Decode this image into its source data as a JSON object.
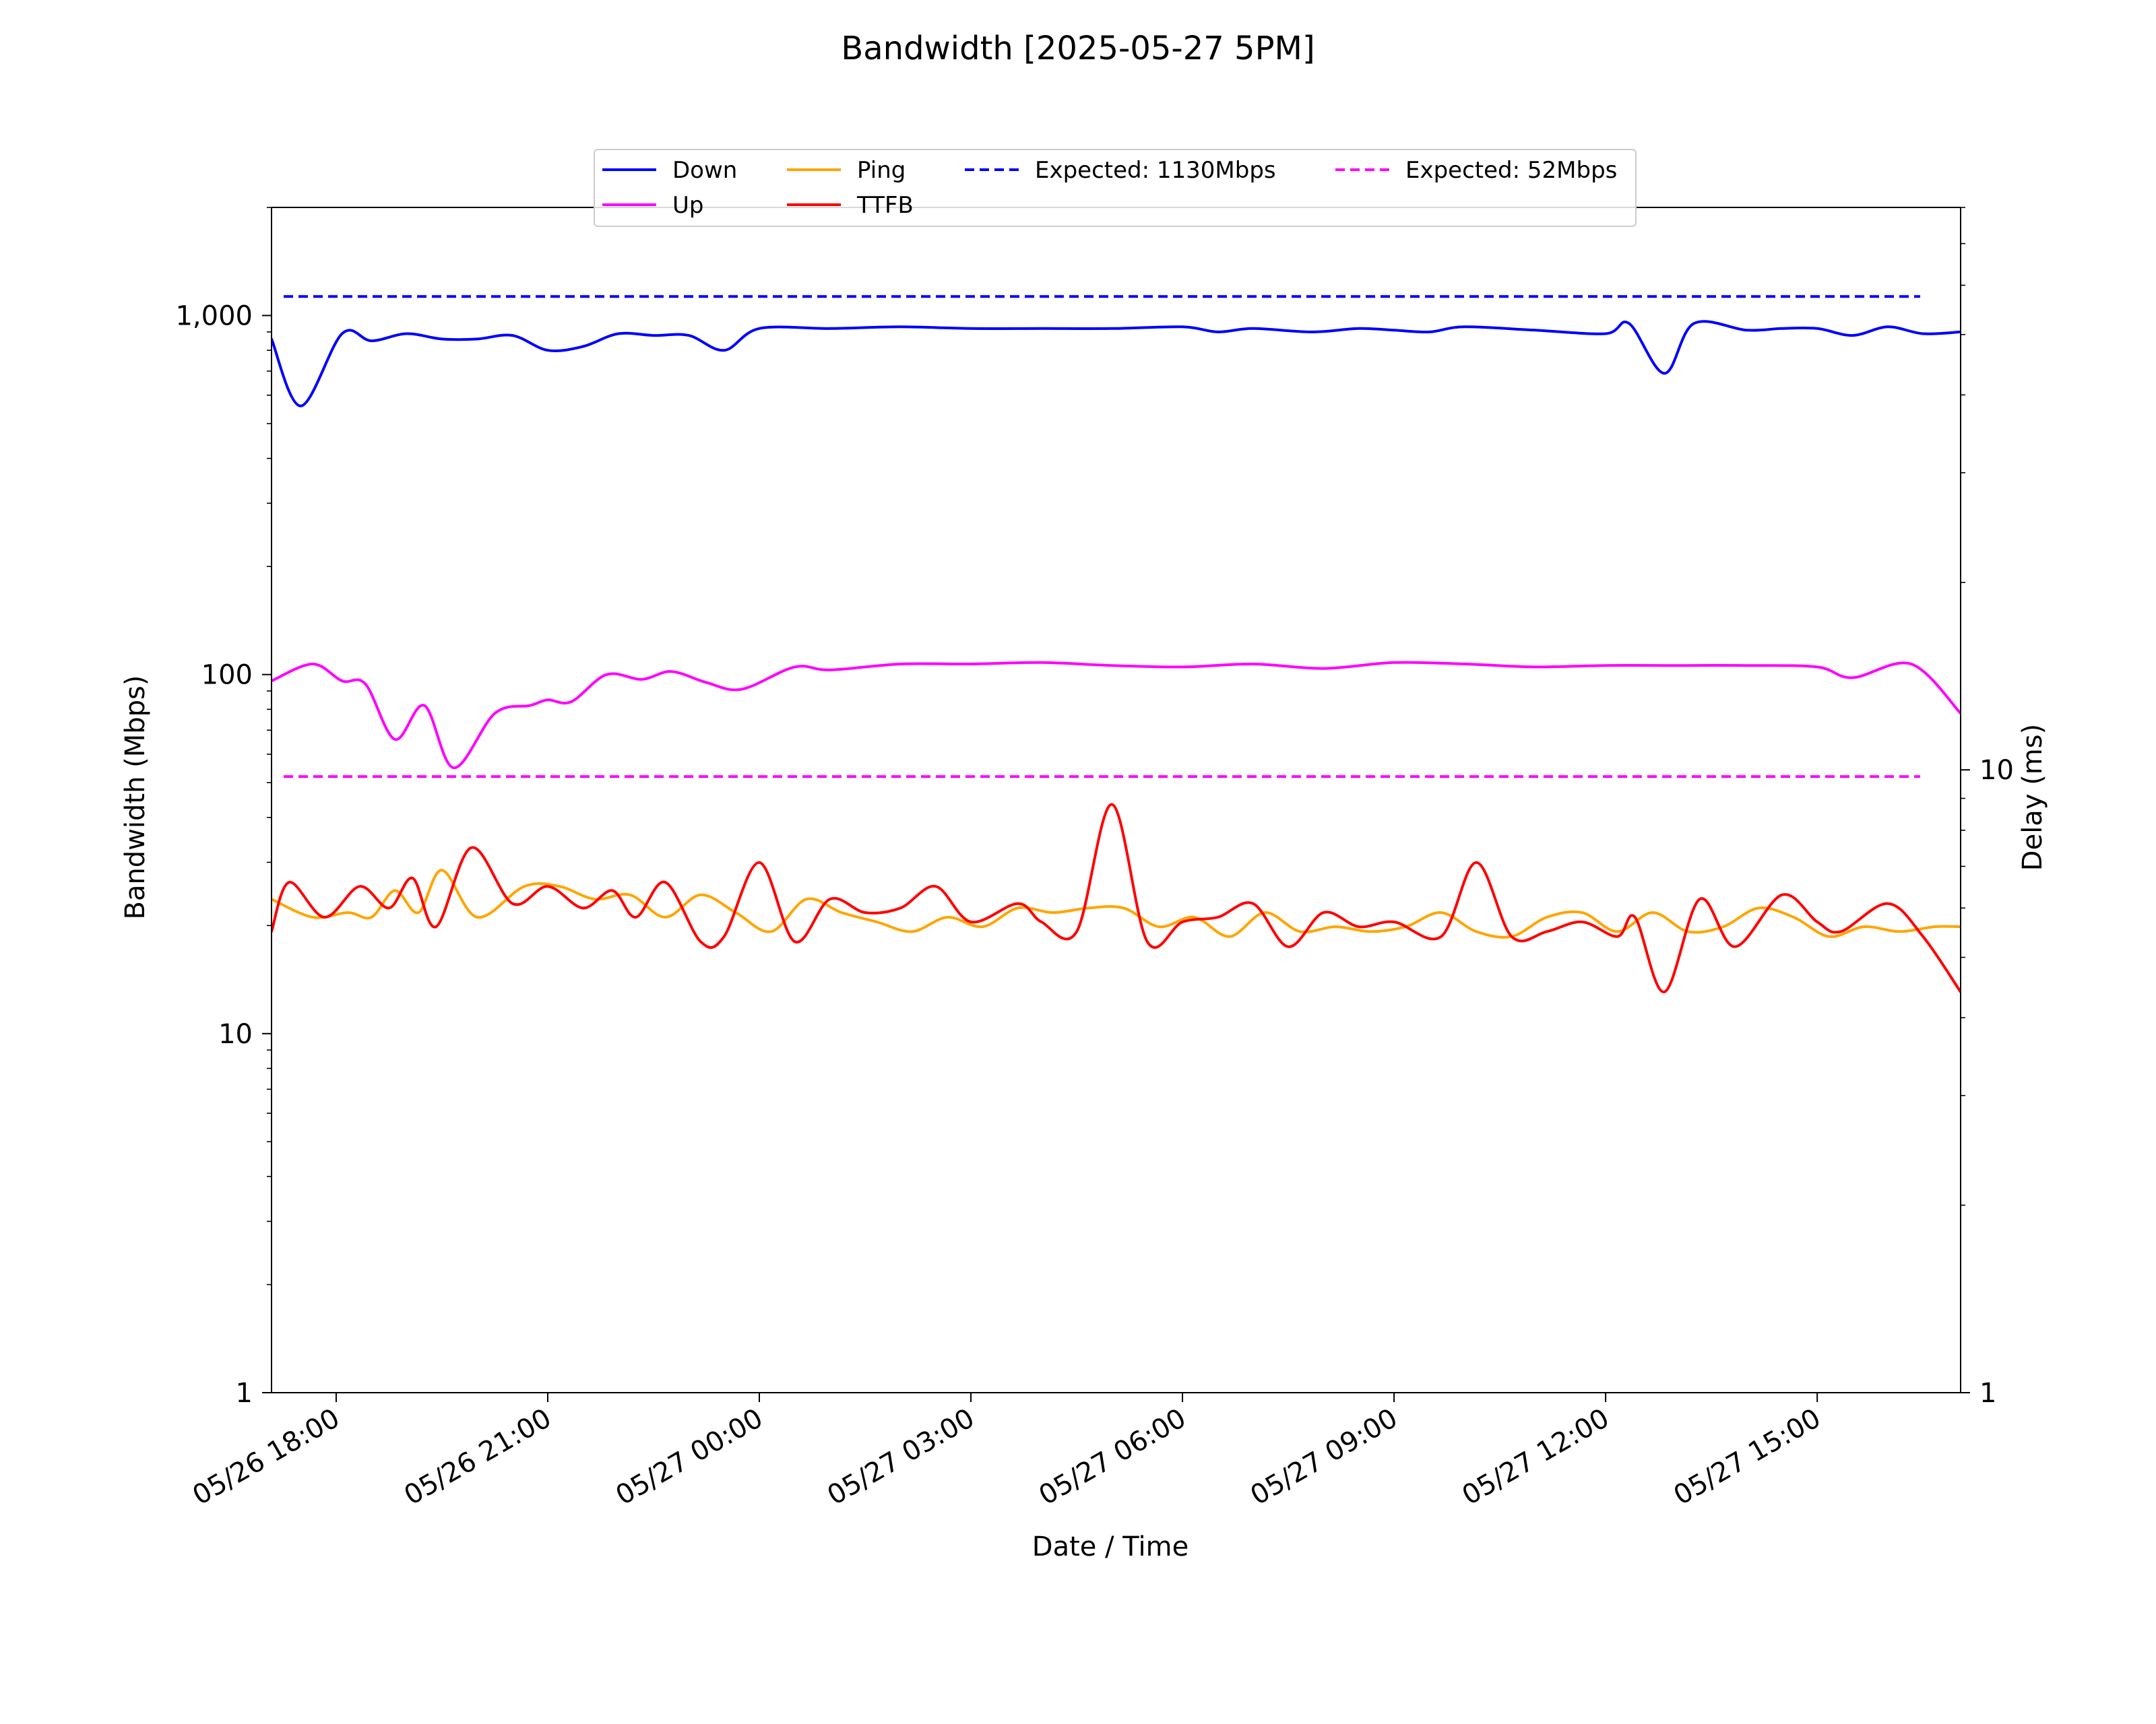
{
  "chart_data": {
    "type": "line",
    "title": "Bandwidth [2025-05-27 5PM]",
    "xlabel": "Date / Time",
    "ylabel": "Bandwidth (Mbps)",
    "y2label": "Delay (ms)",
    "x_axis": {
      "kind": "datetime",
      "range": [
        "2025-05-26 17:05",
        "2025-05-27 17:02"
      ],
      "tick_labels": [
        "05/26 18:00",
        "05/26 21:00",
        "05/27 00:00",
        "05/27 03:00",
        "05/27 06:00",
        "05/27 09:00",
        "05/27 12:00",
        "05/27 15:00"
      ],
      "tick_times": [
        "2025-05-26 18:00",
        "2025-05-26 21:00",
        "2025-05-27 00:00",
        "2025-05-27 03:00",
        "2025-05-27 06:00",
        "2025-05-27 09:00",
        "2025-05-27 12:00",
        "2025-05-27 15:00"
      ],
      "tick_rotation": "30 degrees"
    },
    "y_axis": {
      "scale": "log",
      "ylim": [
        1,
        2000
      ],
      "tick_labels": [
        "1",
        "10",
        "100",
        "1,000"
      ],
      "tick_values": [
        1,
        10,
        100,
        1000
      ]
    },
    "y2_axis": {
      "scale": "log",
      "ylim": [
        1,
        80
      ],
      "tick_labels": [
        "1",
        "10"
      ],
      "tick_values": [
        1,
        10
      ]
    },
    "grid": false,
    "legend": {
      "placement": "top-center",
      "columns": 4,
      "entries": [
        {
          "label": "Down",
          "color": "#0000ff",
          "style": "solid"
        },
        {
          "label": "Up",
          "color": "#ff00ff",
          "style": "solid"
        },
        {
          "label": "Ping",
          "color": "#ffa500",
          "style": "solid"
        },
        {
          "label": "TTFB",
          "color": "#ff0000",
          "style": "solid"
        },
        {
          "label": "Expected: 1130Mbps",
          "color": "#0000ff",
          "style": "dashed"
        },
        {
          "label": "Expected: 52Mbps",
          "color": "#ff00ff",
          "style": "dashed"
        }
      ]
    },
    "reference_lines": [
      {
        "name": "Expected: 1130Mbps",
        "axis": "left",
        "value": 1130,
        "color": "#0000ff"
      },
      {
        "name": "Expected: 52Mbps",
        "axis": "left",
        "value": 52,
        "color": "#ff00ff"
      }
    ],
    "series": [
      {
        "name": "Down",
        "axis": "left",
        "color": "#0000ff",
        "x": [
          "2025-05-26 17:05",
          "2025-05-26 17:30",
          "2025-05-26 18:05",
          "2025-05-26 18:30",
          "2025-05-26 19:00",
          "2025-05-26 19:30",
          "2025-05-26 20:00",
          "2025-05-26 20:30",
          "2025-05-26 21:00",
          "2025-05-26 21:30",
          "2025-05-26 22:00",
          "2025-05-26 22:30",
          "2025-05-26 23:00",
          "2025-05-26 23:30",
          "2025-05-27 00:00",
          "2025-05-27 01:00",
          "2025-05-27 02:00",
          "2025-05-27 03:00",
          "2025-05-27 04:00",
          "2025-05-27 05:00",
          "2025-05-27 06:00",
          "2025-05-27 06:30",
          "2025-05-27 07:00",
          "2025-05-27 07:50",
          "2025-05-27 08:30",
          "2025-05-27 09:00",
          "2025-05-27 09:30",
          "2025-05-27 10:00",
          "2025-05-27 11:00",
          "2025-05-27 12:00",
          "2025-05-27 12:20",
          "2025-05-27 12:50",
          "2025-05-27 13:15",
          "2025-05-27 14:00",
          "2025-05-27 14:30",
          "2025-05-27 15:00",
          "2025-05-27 15:30",
          "2025-05-27 16:00",
          "2025-05-27 16:30",
          "2025-05-27 17:02"
        ],
        "values": [
          860,
          560,
          890,
          850,
          890,
          860,
          860,
          880,
          800,
          820,
          890,
          880,
          880,
          800,
          920,
          920,
          930,
          920,
          920,
          920,
          930,
          900,
          920,
          900,
          920,
          910,
          900,
          930,
          910,
          890,
          950,
          690,
          950,
          910,
          920,
          920,
          880,
          930,
          890,
          900
        ]
      },
      {
        "name": "Up",
        "axis": "left",
        "color": "#ff00ff",
        "x": [
          "2025-05-26 17:05",
          "2025-05-26 17:40",
          "2025-05-26 18:05",
          "2025-05-26 18:25",
          "2025-05-26 18:50",
          "2025-05-26 19:15",
          "2025-05-26 19:40",
          "2025-05-26 20:15",
          "2025-05-26 20:45",
          "2025-05-26 21:00",
          "2025-05-26 21:20",
          "2025-05-26 21:50",
          "2025-05-26 22:20",
          "2025-05-26 22:45",
          "2025-05-26 23:15",
          "2025-05-26 23:45",
          "2025-05-27 00:30",
          "2025-05-27 01:00",
          "2025-05-27 02:00",
          "2025-05-27 03:00",
          "2025-05-27 04:00",
          "2025-05-27 05:00",
          "2025-05-27 06:00",
          "2025-05-27 07:00",
          "2025-05-27 08:00",
          "2025-05-27 09:00",
          "2025-05-27 10:00",
          "2025-05-27 11:00",
          "2025-05-27 12:00",
          "2025-05-27 13:00",
          "2025-05-27 14:00",
          "2025-05-27 15:00",
          "2025-05-27 15:30",
          "2025-05-27 16:20",
          "2025-05-27 17:02"
        ],
        "values": [
          96,
          107,
          96,
          94,
          66,
          82,
          55,
          78,
          82,
          85,
          84,
          100,
          97,
          102,
          95,
          91,
          105,
          103,
          107,
          107,
          108,
          106,
          105,
          107,
          104,
          108,
          107,
          105,
          106,
          106,
          106,
          105,
          98,
          107,
          78
        ]
      },
      {
        "name": "Ping",
        "axis": "right",
        "color": "#ffa500",
        "x": [
          "2025-05-26 17:05",
          "2025-05-26 17:40",
          "2025-05-26 18:10",
          "2025-05-26 18:30",
          "2025-05-26 18:50",
          "2025-05-26 19:10",
          "2025-05-26 19:30",
          "2025-05-26 20:00",
          "2025-05-26 20:40",
          "2025-05-26 21:10",
          "2025-05-26 21:40",
          "2025-05-26 22:10",
          "2025-05-26 22:40",
          "2025-05-26 23:10",
          "2025-05-26 23:40",
          "2025-05-27 00:10",
          "2025-05-27 00:40",
          "2025-05-27 01:10",
          "2025-05-27 01:40",
          "2025-05-27 02:10",
          "2025-05-27 02:40",
          "2025-05-27 03:10",
          "2025-05-27 03:40",
          "2025-05-27 04:10",
          "2025-05-27 04:40",
          "2025-05-27 05:10",
          "2025-05-27 05:40",
          "2025-05-27 06:10",
          "2025-05-27 06:40",
          "2025-05-27 07:10",
          "2025-05-27 07:40",
          "2025-05-27 08:10",
          "2025-05-27 08:40",
          "2025-05-27 09:10",
          "2025-05-27 09:40",
          "2025-05-27 10:10",
          "2025-05-27 10:40",
          "2025-05-27 11:10",
          "2025-05-27 11:40",
          "2025-05-27 12:10",
          "2025-05-27 12:40",
          "2025-05-27 13:10",
          "2025-05-27 13:40",
          "2025-05-27 14:10",
          "2025-05-27 14:40",
          "2025-05-27 15:10",
          "2025-05-27 15:40",
          "2025-05-27 16:10",
          "2025-05-27 16:40",
          "2025-05-27 17:02"
        ],
        "values": [
          6.2,
          5.8,
          5.9,
          5.8,
          6.4,
          5.9,
          6.9,
          5.8,
          6.5,
          6.5,
          6.2,
          6.3,
          5.8,
          6.3,
          5.9,
          5.5,
          6.2,
          5.9,
          5.7,
          5.5,
          5.8,
          5.6,
          6.0,
          5.9,
          6.0,
          6.0,
          5.6,
          5.8,
          5.4,
          5.9,
          5.5,
          5.6,
          5.5,
          5.6,
          5.9,
          5.5,
          5.4,
          5.8,
          5.9,
          5.5,
          5.9,
          5.5,
          5.6,
          6.0,
          5.8,
          5.4,
          5.6,
          5.5,
          5.6,
          5.6
        ]
      },
      {
        "name": "TTFB",
        "axis": "right",
        "color": "#ff0000",
        "x": [
          "2025-05-26 17:05",
          "2025-05-26 17:20",
          "2025-05-26 17:50",
          "2025-05-26 18:20",
          "2025-05-26 18:45",
          "2025-05-26 19:05",
          "2025-05-26 19:25",
          "2025-05-26 19:55",
          "2025-05-26 20:30",
          "2025-05-26 21:00",
          "2025-05-26 21:30",
          "2025-05-26 21:55",
          "2025-05-26 22:15",
          "2025-05-26 22:40",
          "2025-05-26 23:10",
          "2025-05-26 23:30",
          "2025-05-27 00:00",
          "2025-05-27 00:30",
          "2025-05-27 01:00",
          "2025-05-27 01:30",
          "2025-05-27 02:00",
          "2025-05-27 02:30",
          "2025-05-27 03:00",
          "2025-05-27 03:40",
          "2025-05-27 04:00",
          "2025-05-27 04:30",
          "2025-05-27 05:00",
          "2025-05-27 05:30",
          "2025-05-27 06:00",
          "2025-05-27 06:30",
          "2025-05-27 07:00",
          "2025-05-27 07:30",
          "2025-05-27 08:00",
          "2025-05-27 08:30",
          "2025-05-27 09:00",
          "2025-05-27 09:40",
          "2025-05-27 10:10",
          "2025-05-27 10:40",
          "2025-05-27 11:10",
          "2025-05-27 11:40",
          "2025-05-27 12:10",
          "2025-05-27 12:25",
          "2025-05-27 12:50",
          "2025-05-27 13:20",
          "2025-05-27 13:50",
          "2025-05-27 14:30",
          "2025-05-27 15:00",
          "2025-05-27 15:20",
          "2025-05-27 16:00",
          "2025-05-27 16:30",
          "2025-05-27 17:02"
        ],
        "values": [
          5.5,
          6.6,
          5.8,
          6.5,
          6.0,
          6.7,
          5.6,
          7.5,
          6.1,
          6.5,
          6.0,
          6.4,
          5.8,
          6.6,
          5.3,
          5.4,
          7.1,
          5.3,
          6.2,
          5.9,
          6.0,
          6.5,
          5.7,
          6.1,
          5.7,
          5.5,
          8.8,
          5.3,
          5.7,
          5.8,
          6.1,
          5.2,
          5.9,
          5.6,
          5.7,
          5.4,
          7.1,
          5.4,
          5.5,
          5.7,
          5.4,
          5.8,
          4.4,
          6.2,
          5.2,
          6.3,
          5.7,
          5.5,
          6.1,
          5.4,
          4.4
        ]
      }
    ]
  }
}
